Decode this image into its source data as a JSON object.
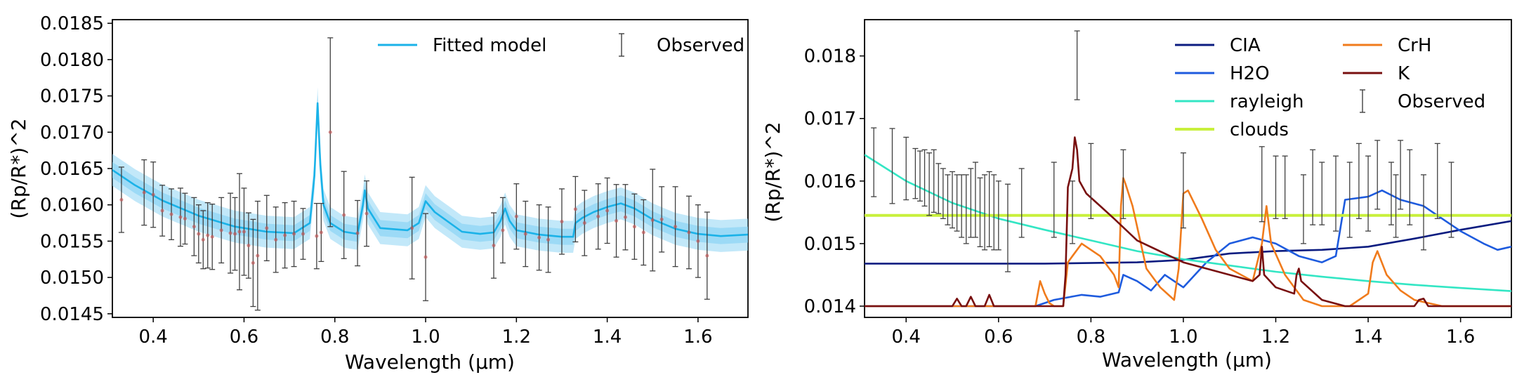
{
  "chart_data": [
    {
      "type": "line",
      "xlabel": "Wavelength (μm)",
      "ylabel": "(Rp/R*)^2",
      "xlim": [
        0.31,
        1.71
      ],
      "ylim": [
        0.01445,
        0.01855
      ],
      "x_ticks": [
        "0.4",
        "0.6",
        "0.8",
        "1.0",
        "1.2",
        "1.4",
        "1.6"
      ],
      "y_ticks": [
        "0.0145",
        "0.0150",
        "0.0155",
        "0.0160",
        "0.0165",
        "0.0170",
        "0.0175",
        "0.0180",
        "0.0185"
      ],
      "legend": {
        "position": "top-right",
        "entries": [
          "Fitted model",
          "Observed"
        ]
      },
      "series": [
        {
          "name": "Fitted model",
          "color": "#1ab2e8",
          "band_color": "#8fd6f4",
          "x": [
            0.31,
            0.36,
            0.42,
            0.5,
            0.58,
            0.65,
            0.71,
            0.745,
            0.755,
            0.762,
            0.768,
            0.775,
            0.79,
            0.82,
            0.85,
            0.862,
            0.866,
            0.873,
            0.9,
            0.96,
            0.985,
            1.0,
            1.02,
            1.08,
            1.12,
            1.15,
            1.165,
            1.175,
            1.185,
            1.2,
            1.25,
            1.3,
            1.325,
            1.33,
            1.345,
            1.37,
            1.4,
            1.43,
            1.46,
            1.5,
            1.55,
            1.6,
            1.65,
            1.71
          ],
          "y": [
            0.01648,
            0.01627,
            0.01606,
            0.01585,
            0.0157,
            0.01563,
            0.01561,
            0.01575,
            0.0164,
            0.0174,
            0.01655,
            0.016,
            0.01575,
            0.01563,
            0.0156,
            0.016,
            0.0162,
            0.01595,
            0.01568,
            0.01565,
            0.01575,
            0.01605,
            0.0159,
            0.01563,
            0.0156,
            0.01562,
            0.01578,
            0.01595,
            0.01578,
            0.01565,
            0.01559,
            0.01556,
            0.01556,
            0.01575,
            0.01582,
            0.0159,
            0.01597,
            0.01602,
            0.01595,
            0.0158,
            0.01567,
            0.0156,
            0.01557,
            0.01559
          ]
        },
        {
          "name": "Observed",
          "color": "#404040",
          "x": [
            0.33,
            0.38,
            0.4,
            0.42,
            0.44,
            0.46,
            0.47,
            0.49,
            0.5,
            0.51,
            0.52,
            0.53,
            0.55,
            0.57,
            0.58,
            0.59,
            0.6,
            0.61,
            0.62,
            0.63,
            0.65,
            0.67,
            0.69,
            0.71,
            0.73,
            0.76,
            0.77,
            0.79,
            0.82,
            0.85,
            0.87,
            0.97,
            1.0,
            1.15,
            1.17,
            1.2,
            1.22,
            1.25,
            1.27,
            1.3,
            1.33,
            1.35,
            1.38,
            1.4,
            1.42,
            1.44,
            1.46,
            1.48,
            1.5,
            1.52,
            1.55,
            1.58,
            1.6,
            1.62
          ],
          "y": [
            0.01607,
            0.01617,
            0.01614,
            0.01592,
            0.01587,
            0.01583,
            0.01581,
            0.0157,
            0.0156,
            0.01552,
            0.01558,
            0.01556,
            0.01565,
            0.01561,
            0.0156,
            0.01563,
            0.01563,
            0.01544,
            0.0152,
            0.0153,
            0.01568,
            0.01552,
            0.01558,
            0.0156,
            0.0156,
            0.01557,
            0.01562,
            0.017,
            0.01586,
            0.01561,
            0.01588,
            0.01568,
            0.01528,
            0.01544,
            0.01565,
            0.01584,
            0.0156,
            0.01555,
            0.01552,
            0.01577,
            0.01594,
            0.01575,
            0.01584,
            0.01592,
            0.01578,
            0.01583,
            0.0157,
            0.01562,
            0.01579,
            0.0158,
            0.0157,
            0.01562,
            0.0155,
            0.0153
          ],
          "err": [
            0.00045,
            0.00045,
            0.00045,
            0.00035,
            0.00035,
            0.0004,
            0.00035,
            0.0004,
            0.0004,
            0.0004,
            0.00045,
            0.00045,
            0.00045,
            0.00055,
            0.0005,
            0.0008,
            0.0006,
            0.00045,
            0.0006,
            0.00075,
            0.00045,
            0.00045,
            0.00045,
            0.00045,
            0.00035,
            0.00045,
            0.0004,
            0.0013,
            0.0006,
            0.00045,
            0.00045,
            0.0007,
            0.0006,
            0.00045,
            0.00045,
            0.00045,
            0.00045,
            0.00045,
            0.00045,
            0.00045,
            0.00045,
            0.00045,
            0.00045,
            0.00045,
            0.0005,
            0.00045,
            0.00045,
            0.00045,
            0.0007,
            0.00045,
            0.00055,
            0.0005,
            0.0005,
            0.0006
          ]
        }
      ]
    },
    {
      "type": "line",
      "xlabel": "Wavelength (μm)",
      "ylabel": "(Rp/R*)^2",
      "xlim": [
        0.31,
        1.71
      ],
      "ylim": [
        0.01382,
        0.01858
      ],
      "x_ticks": [
        "0.4",
        "0.6",
        "0.8",
        "1.0",
        "1.2",
        "1.4",
        "1.6"
      ],
      "y_ticks": [
        "0.014",
        "0.015",
        "0.016",
        "0.017",
        "0.018"
      ],
      "legend": {
        "position": "top-right",
        "entries": [
          "CIA",
          "CrH",
          "H2O",
          "K",
          "rayleigh",
          "Observed",
          "clouds"
        ]
      },
      "series": [
        {
          "name": "CIA",
          "color": "#0b1c80",
          "x": [
            0.31,
            0.5,
            0.7,
            0.9,
            1.0,
            1.1,
            1.2,
            1.3,
            1.4,
            1.5,
            1.6,
            1.71
          ],
          "y": [
            0.01468,
            0.01468,
            0.01468,
            0.0147,
            0.01474,
            0.01484,
            0.01488,
            0.0149,
            0.01495,
            0.01508,
            0.01522,
            0.01536
          ]
        },
        {
          "name": "H2O",
          "color": "#1e5bde",
          "x": [
            0.31,
            0.68,
            0.72,
            0.78,
            0.82,
            0.86,
            0.87,
            0.9,
            0.93,
            0.96,
            1.0,
            1.05,
            1.1,
            1.15,
            1.2,
            1.25,
            1.3,
            1.33,
            1.35,
            1.4,
            1.43,
            1.47,
            1.52,
            1.56,
            1.6,
            1.65,
            1.68,
            1.71
          ],
          "y": [
            0.014,
            0.014,
            0.0141,
            0.01418,
            0.01415,
            0.01422,
            0.0145,
            0.0144,
            0.01425,
            0.0145,
            0.0143,
            0.0147,
            0.015,
            0.0151,
            0.015,
            0.0148,
            0.0147,
            0.0148,
            0.0157,
            0.01575,
            0.01585,
            0.0157,
            0.0156,
            0.0154,
            0.0152,
            0.015,
            0.0149,
            0.01495
          ]
        },
        {
          "name": "rayleigh",
          "color": "#33e6c4",
          "x": [
            0.31,
            0.4,
            0.5,
            0.6,
            0.7,
            0.8,
            0.9,
            1.0,
            1.1,
            1.2,
            1.3,
            1.4,
            1.5,
            1.6,
            1.71
          ],
          "y": [
            0.01642,
            0.016,
            0.01565,
            0.0154,
            0.01522,
            0.01505,
            0.01488,
            0.01475,
            0.01465,
            0.01455,
            0.01447,
            0.0144,
            0.01434,
            0.01429,
            0.01424
          ]
        },
        {
          "name": "clouds",
          "color": "#c8f03c",
          "x": [
            0.31,
            1.71
          ],
          "y": [
            0.01545,
            0.01545
          ]
        },
        {
          "name": "CrH",
          "color": "#f07b1c",
          "x": [
            0.31,
            0.68,
            0.69,
            0.7,
            0.71,
            0.72,
            0.74,
            0.75,
            0.76,
            0.78,
            0.82,
            0.85,
            0.86,
            0.865,
            0.87,
            0.875,
            0.89,
            0.92,
            0.95,
            0.98,
            0.99,
            1.0,
            1.01,
            1.04,
            1.07,
            1.1,
            1.15,
            1.17,
            1.18,
            1.19,
            1.22,
            1.26,
            1.3,
            1.36,
            1.4,
            1.41,
            1.42,
            1.44,
            1.47,
            1.5,
            1.56,
            1.71
          ],
          "y": [
            0.014,
            0.014,
            0.0144,
            0.0142,
            0.01405,
            0.014,
            0.014,
            0.0147,
            0.0148,
            0.015,
            0.0148,
            0.0145,
            0.0143,
            0.0156,
            0.01605,
            0.01595,
            0.0156,
            0.0146,
            0.0143,
            0.0141,
            0.0146,
            0.0158,
            0.01585,
            0.0154,
            0.0149,
            0.0146,
            0.0144,
            0.015,
            0.0156,
            0.015,
            0.0145,
            0.0141,
            0.014,
            0.014,
            0.0142,
            0.0147,
            0.01488,
            0.0145,
            0.01425,
            0.0141,
            0.014,
            0.014
          ]
        },
        {
          "name": "K",
          "color": "#780f0f",
          "x": [
            0.31,
            0.5,
            0.51,
            0.52,
            0.53,
            0.54,
            0.55,
            0.57,
            0.58,
            0.59,
            0.74,
            0.745,
            0.75,
            0.76,
            0.765,
            0.77,
            0.775,
            0.79,
            0.82,
            0.85,
            0.9,
            1.0,
            1.05,
            1.1,
            1.15,
            1.165,
            1.17,
            1.175,
            1.2,
            1.24,
            1.245,
            1.25,
            1.255,
            1.3,
            1.35,
            1.5,
            1.51,
            1.52,
            1.53,
            1.71
          ],
          "y": [
            0.014,
            0.014,
            0.01412,
            0.014,
            0.014,
            0.01415,
            0.014,
            0.014,
            0.01418,
            0.014,
            0.014,
            0.0145,
            0.0159,
            0.0162,
            0.0167,
            0.0165,
            0.016,
            0.0158,
            0.0156,
            0.0154,
            0.01505,
            0.0147,
            0.0146,
            0.0145,
            0.0144,
            0.0145,
            0.01495,
            0.0145,
            0.0143,
            0.0142,
            0.0145,
            0.0146,
            0.0144,
            0.0141,
            0.014,
            0.014,
            0.0141,
            0.01412,
            0.014,
            0.014
          ]
        },
        {
          "name": "Observed",
          "color": "#404040",
          "x": [
            0.33,
            0.37,
            0.4,
            0.42,
            0.43,
            0.44,
            0.45,
            0.46,
            0.47,
            0.48,
            0.49,
            0.5,
            0.51,
            0.52,
            0.53,
            0.54,
            0.55,
            0.56,
            0.57,
            0.58,
            0.59,
            0.6,
            0.62,
            0.65,
            0.72,
            0.76,
            0.77,
            0.8,
            0.87,
            1.0,
            1.17,
            1.2,
            1.22,
            1.26,
            1.28,
            1.3,
            1.33,
            1.36,
            1.38,
            1.4,
            1.42,
            1.45,
            1.46,
            1.47,
            1.49,
            1.52,
            1.55,
            1.58
          ],
          "y": [
            0.0163,
            0.01624,
            0.0162,
            0.01612,
            0.01608,
            0.01605,
            0.01595,
            0.016,
            0.01588,
            0.0158,
            0.0157,
            0.0157,
            0.01565,
            0.0156,
            0.01555,
            0.01565,
            0.0157,
            0.0155,
            0.0155,
            0.01555,
            0.0155,
            0.01545,
            0.01525,
            0.01565,
            0.0157,
            0.0155,
            0.01785,
            0.016,
            0.01595,
            0.01585,
            0.01595,
            0.0159,
            0.0159,
            0.01555,
            0.0159,
            0.0158,
            0.0158,
            0.0157,
            0.016,
            0.0158,
            0.0161,
            0.0158,
            0.0156,
            0.0161,
            0.0159,
            0.0155,
            0.016,
            0.0157
          ],
          "err": [
            0.00055,
            0.0006,
            0.0005,
            0.0004,
            0.0004,
            0.00045,
            0.0005,
            0.0005,
            0.0004,
            0.0004,
            0.0004,
            0.00045,
            0.00045,
            0.0005,
            0.00055,
            0.00055,
            0.0006,
            0.00055,
            0.0006,
            0.0006,
            0.0006,
            0.00055,
            0.0007,
            0.00055,
            0.0006,
            0.0005,
            0.00055,
            0.0006,
            0.00055,
            0.0006,
            0.0006,
            0.0005,
            0.0005,
            0.00055,
            0.0006,
            0.0005,
            0.0006,
            0.0006,
            0.0006,
            0.0006,
            0.00055,
            0.0005,
            0.0005,
            0.00055,
            0.0006,
            0.0006,
            0.0006,
            0.0006
          ]
        }
      ]
    }
  ]
}
